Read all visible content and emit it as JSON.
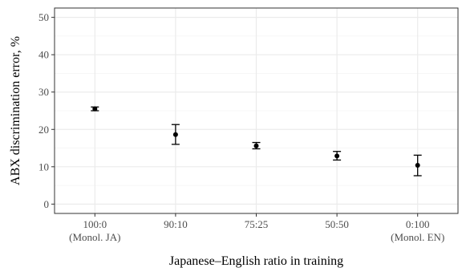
{
  "chart_data": {
    "type": "scatter",
    "error_bars": true,
    "categories": [
      "100:0",
      "90:10",
      "75:25",
      "50:50",
      "0:100"
    ],
    "category_sublabels": [
      "(Monol. JA)",
      "",
      "",
      "",
      "(Monol. EN)"
    ],
    "values": [
      25.5,
      18.6,
      15.6,
      12.9,
      10.4
    ],
    "error_low": [
      25.0,
      16.0,
      14.8,
      11.8,
      7.6
    ],
    "error_high": [
      26.0,
      21.3,
      16.5,
      14.1,
      13.1
    ],
    "xlabel": "Japanese–English ratio in training",
    "ylabel": "ABX discrimination error, %",
    "ylim": [
      -2.5,
      52.5
    ],
    "yticks": [
      0,
      10,
      20,
      30,
      40,
      50
    ],
    "grid": true,
    "colors": {
      "point": "#000000",
      "grid_major": "#ebebeb",
      "grid_minor": "#f5f5f5",
      "panel_border": "#333333",
      "background": "#ffffff"
    }
  }
}
